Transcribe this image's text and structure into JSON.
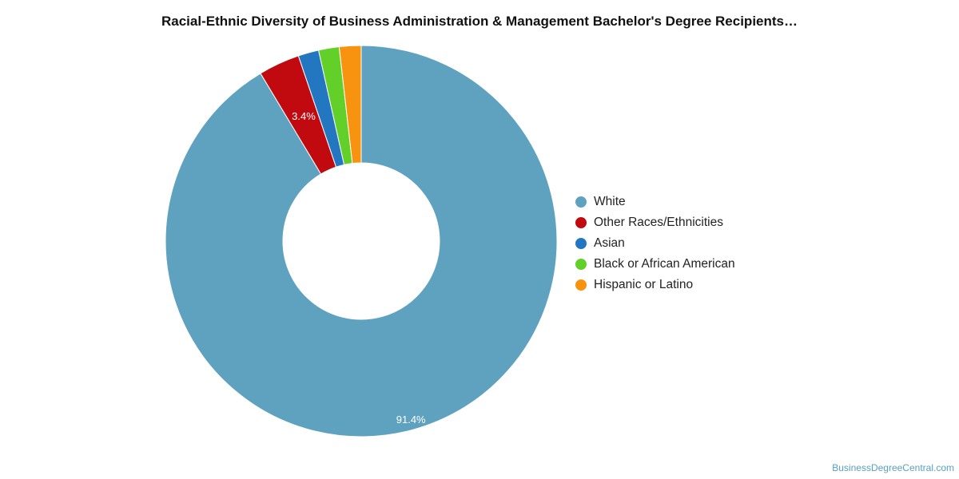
{
  "chart_data": {
    "type": "pie",
    "title": "Racial-Ethnic Diversity of Business Administration & Management Bachelor's Degree Recipients…",
    "donut": true,
    "legend_position": "right",
    "slices": [
      {
        "name": "White",
        "value": 91.4,
        "color": "#5fa2bf",
        "label": "91.4%"
      },
      {
        "name": "Other Races/Ethnicities",
        "value": 3.4,
        "color": "#c00a10",
        "label": "3.4%"
      },
      {
        "name": "Asian",
        "value": 1.7,
        "color": "#2277c0",
        "label": ""
      },
      {
        "name": "Black or African American",
        "value": 1.7,
        "color": "#63d029",
        "label": ""
      },
      {
        "name": "Hispanic or Latino",
        "value": 1.8,
        "color": "#f7930f",
        "label": ""
      }
    ]
  },
  "footer": {
    "source": "BusinessDegreeCentral.com"
  }
}
